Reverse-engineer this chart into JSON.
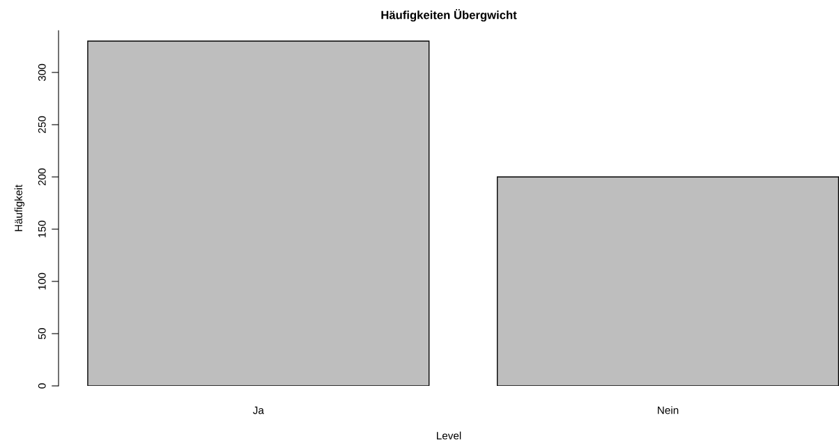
{
  "chart_data": {
    "type": "bar",
    "title": "Häufigkeiten Übergwicht",
    "xlabel": "Level",
    "ylabel": "Häufigkeit",
    "categories": [
      "Ja",
      "Nein"
    ],
    "values": [
      330,
      200
    ],
    "color": "#bebebe",
    "ylim": [
      0,
      340
    ],
    "yticks": [
      0,
      50,
      100,
      150,
      200,
      250,
      300
    ],
    "grid": false
  }
}
